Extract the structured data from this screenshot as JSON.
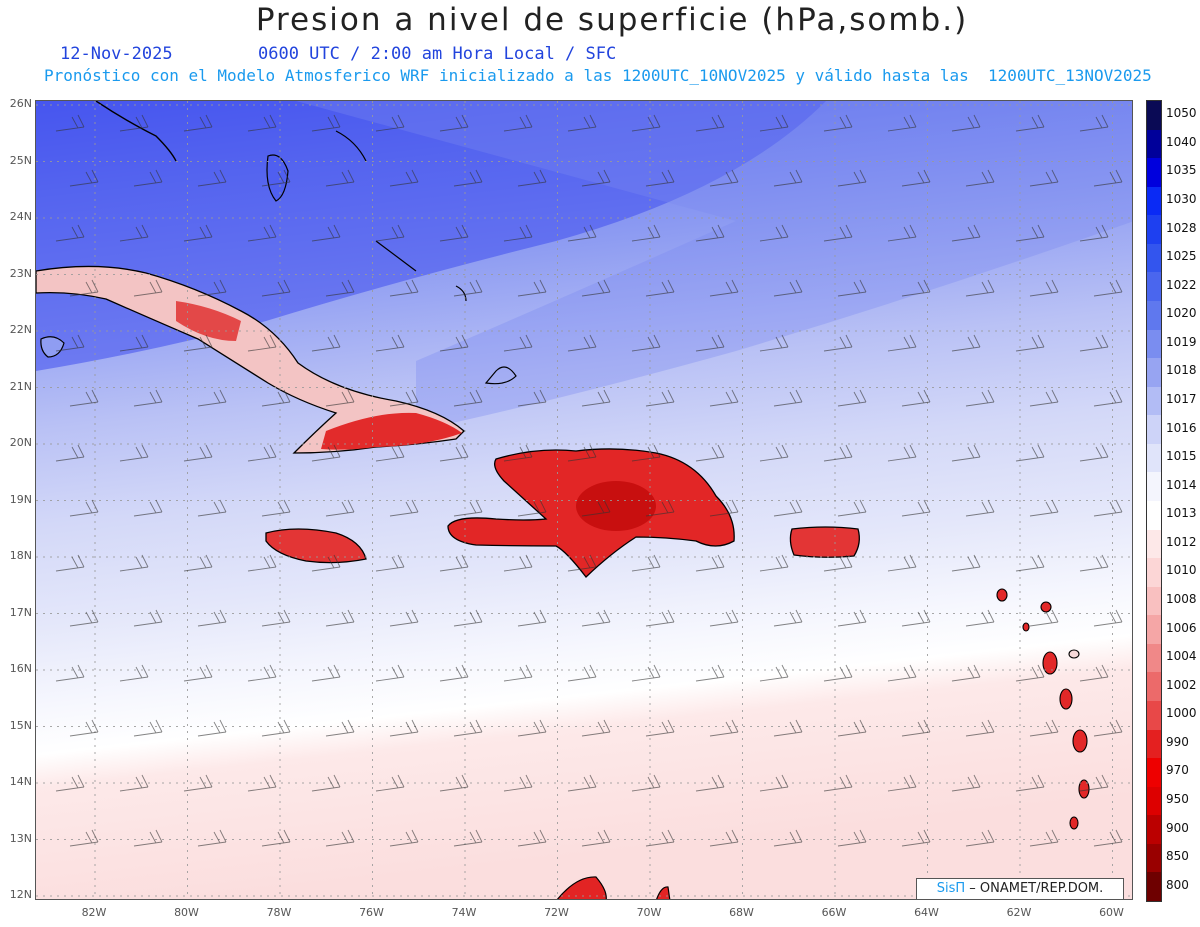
{
  "header": {
    "title": "Presion a nivel de superficie (hPa,somb.)",
    "date": "12-Nov-2025",
    "valid_time": "0600 UTC / 2:00 am Hora Local / SFC",
    "description": "Pronóstico con el Modelo Atmosferico WRF inicializado a las 1200UTC_10NOV2025 y válido hasta las  1200UTC_13NOV2025"
  },
  "map": {
    "region": "Caribbean",
    "lat_labels": [
      "26N",
      "25N",
      "24N",
      "23N",
      "22N",
      "21N",
      "20N",
      "19N",
      "18N",
      "17N",
      "16N",
      "15N",
      "14N",
      "13N",
      "12N"
    ],
    "lon_labels": [
      "82W",
      "80W",
      "78W",
      "76W",
      "74W",
      "72W",
      "70W",
      "68W",
      "66W",
      "64W",
      "62W",
      "60W"
    ],
    "grid": "dotted",
    "wind_barbs": true
  },
  "colorbar": {
    "labels": [
      "1050",
      "1040",
      "1035",
      "1030",
      "1028",
      "1025",
      "1022",
      "1020",
      "1019",
      "1018",
      "1017",
      "1016",
      "1015",
      "1014",
      "1013",
      "1012",
      "1010",
      "1008",
      "1006",
      "1004",
      "1002",
      "1000",
      "990",
      "970",
      "950",
      "900",
      "850",
      "800"
    ],
    "colors": [
      "#0a0a55",
      "#00009a",
      "#0000dd",
      "#0a2af5",
      "#1e40f0",
      "#3355ee",
      "#4a66ee",
      "#5f78ee",
      "#7a8df0",
      "#97a4f2",
      "#b2bcf5",
      "#cdd3f8",
      "#e0e4fa",
      "#f4f5fd",
      "#ffffff",
      "#fde8e8",
      "#fcd6d6",
      "#f9c0c0",
      "#f5a6a6",
      "#f08888",
      "#ec6a6a",
      "#e84848",
      "#e42020",
      "#ee0000",
      "#dd0000",
      "#bb0000",
      "#990000",
      "#6e0000"
    ]
  },
  "credit": {
    "brand": "SisΠ",
    "text": "– ONAMET/REP.DOM."
  }
}
